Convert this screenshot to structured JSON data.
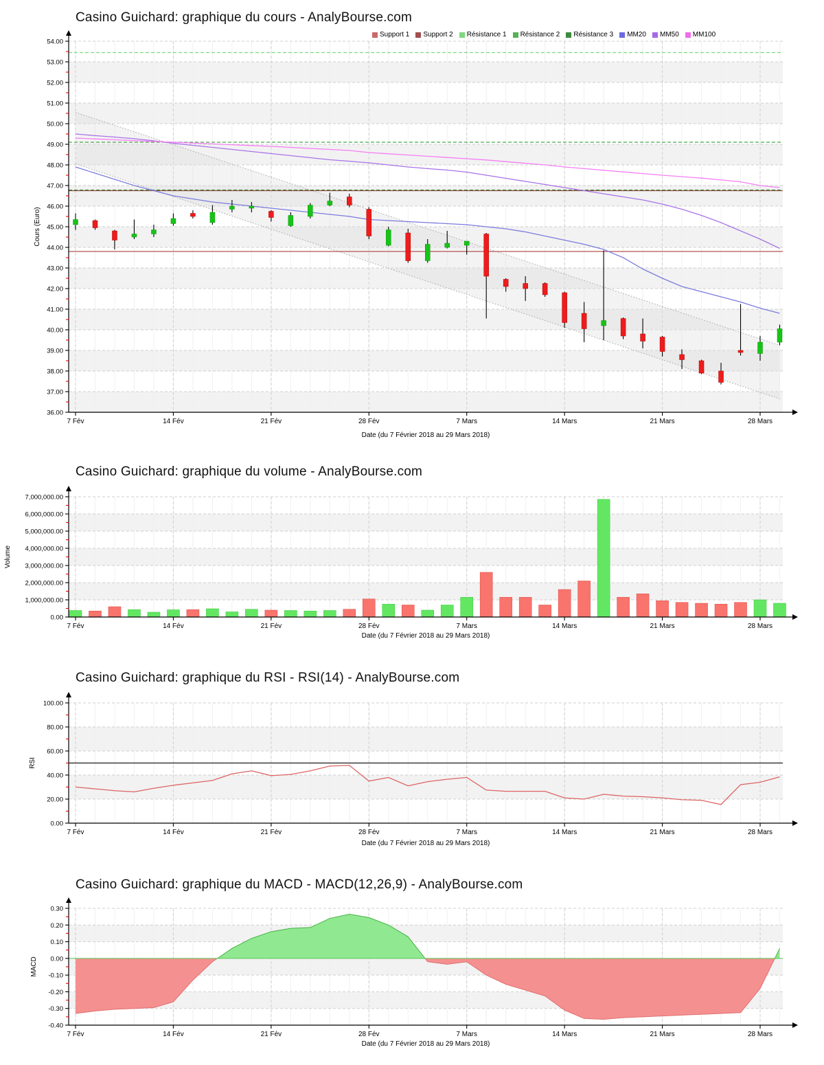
{
  "xaxis_label": "Date (du 7 Février 2018 au 29 Mars 2018)",
  "dates": [
    "7 Fév",
    "8 Fév",
    "9 Fév",
    "12 Fév",
    "13 Fév",
    "14 Fév",
    "15 Fév",
    "16 Fév",
    "19 Fév",
    "20 Fév",
    "21 Fév",
    "22 Fév",
    "23 Fév",
    "26 Fév",
    "27 Fév",
    "28 Fév",
    "1 Mars",
    "2 Mars",
    "5 Mars",
    "6 Mars",
    "7 Mars",
    "8 Mars",
    "9 Mars",
    "12 Mars",
    "13 Mars",
    "14 Mars",
    "15 Mars",
    "16 Mars",
    "19 Mars",
    "20 Mars",
    "21 Mars",
    "22 Mars",
    "23 Mars",
    "26 Mars",
    "27 Mars",
    "28 Mars",
    "29 Mars"
  ],
  "tick_indices": [
    0,
    5,
    10,
    15,
    20,
    25,
    30,
    35
  ],
  "tick_labels": [
    "7 Fév",
    "14 Fév",
    "21 Fév",
    "28 Fév",
    "7 Mars",
    "14 Mars",
    "21 Mars",
    "28 Mars"
  ],
  "chart_data": [
    {
      "type": "candlestick",
      "title": "Casino Guichard: graphique du cours - AnalyBourse.com",
      "ylabel": "Cours (Euro)",
      "xlabel": "Date (du 7 Février 2018 au 29 Mars 2018)",
      "ylim": [
        36,
        54
      ],
      "ytick": {
        "step": 1,
        "decimals": 2,
        "thousands": false
      },
      "grid": true,
      "legend_position": "top",
      "legend": [
        {
          "label": "Support 1",
          "color": "#c96a6a"
        },
        {
          "label": "Support 2",
          "color": "#a14f4f"
        },
        {
          "label": "Résistance 1",
          "color": "#7fd87f"
        },
        {
          "label": "Résistance 2",
          "color": "#56b056"
        },
        {
          "label": "Résistance 3",
          "color": "#3d8b3d"
        },
        {
          "label": "MM20",
          "color": "#6a6ae2"
        },
        {
          "label": "MM50",
          "color": "#a869e6"
        },
        {
          "label": "MM100",
          "color": "#ef6fe8"
        }
      ],
      "candle_colors": {
        "up": "#17c317",
        "down": "#ee1c1c"
      },
      "ohlc": [
        [
          45.1,
          45.65,
          44.85,
          45.35
        ],
        [
          45.3,
          45.35,
          44.85,
          44.95
        ],
        [
          44.8,
          44.85,
          43.9,
          44.35
        ],
        [
          44.5,
          45.35,
          44.4,
          44.65
        ],
        [
          44.65,
          45.1,
          44.5,
          44.85
        ],
        [
          45.15,
          45.65,
          45.05,
          45.4
        ],
        [
          45.65,
          45.8,
          45.4,
          45.5
        ],
        [
          45.2,
          46.05,
          45.1,
          45.7
        ],
        [
          45.85,
          46.3,
          45.7,
          46.0
        ],
        [
          45.9,
          46.2,
          45.7,
          46.0
        ],
        [
          45.75,
          45.8,
          45.25,
          45.45
        ],
        [
          45.05,
          45.7,
          45.0,
          45.55
        ],
        [
          45.5,
          46.15,
          45.4,
          46.05
        ],
        [
          46.05,
          46.65,
          46.0,
          46.25
        ],
        [
          46.45,
          46.6,
          45.95,
          46.05
        ],
        [
          45.85,
          45.95,
          44.4,
          44.55
        ],
        [
          44.1,
          45.0,
          44.05,
          44.85
        ],
        [
          44.7,
          44.9,
          43.25,
          43.35
        ],
        [
          43.35,
          44.4,
          43.25,
          44.15
        ],
        [
          44.0,
          44.8,
          43.95,
          44.2
        ],
        [
          44.1,
          44.3,
          43.65,
          44.3
        ],
        [
          44.65,
          44.7,
          40.55,
          42.6
        ],
        [
          42.45,
          42.5,
          41.85,
          42.1
        ],
        [
          42.25,
          42.6,
          41.4,
          42.0
        ],
        [
          42.25,
          42.3,
          41.6,
          41.7
        ],
        [
          41.8,
          41.85,
          40.1,
          40.35
        ],
        [
          40.8,
          41.35,
          39.4,
          40.05
        ],
        [
          40.2,
          43.85,
          39.5,
          40.45
        ],
        [
          40.55,
          40.6,
          39.55,
          39.7
        ],
        [
          39.8,
          40.55,
          39.1,
          39.45
        ],
        [
          39.65,
          39.7,
          38.7,
          38.95
        ],
        [
          38.8,
          39.05,
          38.1,
          38.55
        ],
        [
          38.5,
          38.55,
          37.85,
          37.9
        ],
        [
          38.0,
          38.4,
          37.35,
          37.45
        ],
        [
          39.0,
          41.25,
          38.75,
          38.9
        ],
        [
          38.85,
          39.7,
          38.5,
          39.4
        ],
        [
          39.4,
          40.25,
          39.25,
          40.05
        ]
      ],
      "levels": [
        {
          "name": "Résistance 1",
          "value": 53.45,
          "color": "#7fd87f",
          "dash": true
        },
        {
          "name": "Résistance 2",
          "value": 49.1,
          "color": "#4aa64a",
          "dash": true
        },
        {
          "name": "Support 2",
          "value": 46.75,
          "color": "#9a4a42",
          "dash": false
        },
        {
          "name": "Résistance 3",
          "value": 46.78,
          "color": "#2e7d32",
          "dash": true
        },
        {
          "name": "Support 1",
          "value": 43.8,
          "color": "#b05552",
          "dash": false
        }
      ],
      "moving_averages": [
        {
          "name": "MM20",
          "color": "#7b7bde",
          "values": [
            47.9,
            47.6,
            47.3,
            47.0,
            46.75,
            46.5,
            46.35,
            46.2,
            46.1,
            46.0,
            45.9,
            45.8,
            45.7,
            45.6,
            45.5,
            45.35,
            45.3,
            45.25,
            45.2,
            45.15,
            45.1,
            45.0,
            44.9,
            44.75,
            44.55,
            44.35,
            44.15,
            43.9,
            43.5,
            42.95,
            42.5,
            42.1,
            41.85,
            41.6,
            41.35,
            41.05,
            40.8
          ]
        },
        {
          "name": "MM50",
          "color": "#a873e8",
          "values": [
            49.5,
            49.42,
            49.35,
            49.27,
            49.17,
            49.05,
            48.95,
            48.85,
            48.75,
            48.65,
            48.55,
            48.45,
            48.35,
            48.25,
            48.18,
            48.1,
            48.0,
            47.9,
            47.82,
            47.75,
            47.65,
            47.5,
            47.35,
            47.2,
            47.05,
            46.9,
            46.75,
            46.6,
            46.45,
            46.3,
            46.1,
            45.85,
            45.55,
            45.2,
            44.8,
            44.4,
            43.95
          ]
        },
        {
          "name": "MM100",
          "color": "#f57ef5",
          "values": [
            49.3,
            49.26,
            49.22,
            49.18,
            49.14,
            49.1,
            49.06,
            49.02,
            48.98,
            48.94,
            48.9,
            48.85,
            48.8,
            48.75,
            48.7,
            48.6,
            48.54,
            48.48,
            48.42,
            48.36,
            48.3,
            48.24,
            48.16,
            48.08,
            48.0,
            47.9,
            47.82,
            47.74,
            47.66,
            47.58,
            47.5,
            47.43,
            47.36,
            47.27,
            47.18,
            47.0,
            46.9
          ]
        }
      ],
      "channel": {
        "upper": [
          50.55,
          39.25
        ],
        "lower": [
          48.05,
          36.65
        ],
        "line_color": "#a3a3a3",
        "fill": "#dcdcdc"
      }
    },
    {
      "type": "bar",
      "title": "Casino Guichard: graphique du volume - AnalyBourse.com",
      "ylabel": "Volume",
      "xlabel": "Date (du 7 Février 2018 au 29 Mars 2018)",
      "ylim": [
        0,
        7000000
      ],
      "ytick": {
        "step": 1000000,
        "decimals": 2,
        "thousands": true
      },
      "bar_colors": {
        "up": "#63e763",
        "down": "#f9746c",
        "up_edge": "#44cc44",
        "down_edge": "#e05550"
      },
      "values": [
        380000,
        350000,
        600000,
        430000,
        280000,
        420000,
        430000,
        480000,
        300000,
        450000,
        400000,
        380000,
        350000,
        380000,
        450000,
        1050000,
        750000,
        700000,
        400000,
        700000,
        1150000,
        2600000,
        1150000,
        1150000,
        700000,
        1600000,
        2100000,
        6850000,
        1150000,
        1350000,
        950000,
        850000,
        800000,
        750000,
        850000,
        1000000,
        800000
      ],
      "up": [
        1,
        0,
        0,
        1,
        1,
        1,
        0,
        1,
        1,
        1,
        0,
        1,
        1,
        1,
        0,
        0,
        1,
        0,
        1,
        1,
        1,
        0,
        0,
        0,
        0,
        0,
        0,
        1,
        0,
        0,
        0,
        0,
        0,
        0,
        0,
        1,
        1
      ]
    },
    {
      "type": "line",
      "title": "Casino Guichard: graphique du RSI - RSI(14) - AnalyBourse.com",
      "ylabel": "RSI",
      "xlabel": "Date (du 7 Février 2018 au 29 Mars 2018)",
      "ylim": [
        0,
        100
      ],
      "ytick": {
        "step": 20,
        "decimals": 2,
        "thousands": false
      },
      "line_color": "#dd6363",
      "baseline": 50,
      "baseline_color": "#3a3a3a",
      "values": [
        30,
        28.5,
        27,
        26,
        29,
        31.5,
        33.5,
        35.5,
        41,
        43.5,
        39.5,
        40.5,
        43.5,
        47.5,
        48,
        35,
        38,
        31,
        34.5,
        36.5,
        38,
        27.5,
        26.5,
        26.5,
        26.5,
        21,
        20,
        24,
        22.5,
        22,
        21,
        19.5,
        19,
        15.5,
        32,
        34,
        38.5
      ]
    },
    {
      "type": "area",
      "title": "Casino Guichard: graphique du MACD - MACD(12,26,9) - AnalyBourse.com",
      "ylabel": "MACD",
      "xlabel": "Date (du 7 Février 2018 au 29 Mars 2018)",
      "ylim": [
        -0.4,
        0.3
      ],
      "ytick": {
        "step": 0.1,
        "decimals": 2,
        "thousands": false
      },
      "area_colors": {
        "pos_fill": "#90e890",
        "neg_fill": "#f59090",
        "pos_edge": "#46b246",
        "neg_edge": "#e06e6e",
        "zero_color": "#55c855"
      },
      "values": [
        -0.33,
        -0.315,
        -0.305,
        -0.3,
        -0.295,
        -0.26,
        -0.13,
        -0.02,
        0.06,
        0.12,
        0.16,
        0.18,
        0.185,
        0.24,
        0.265,
        0.245,
        0.2,
        0.13,
        -0.02,
        -0.035,
        -0.02,
        -0.1,
        -0.155,
        -0.19,
        -0.225,
        -0.31,
        -0.36,
        -0.365,
        -0.355,
        -0.35,
        -0.345,
        -0.34,
        -0.335,
        -0.33,
        -0.325,
        -0.18,
        0.06
      ]
    }
  ]
}
